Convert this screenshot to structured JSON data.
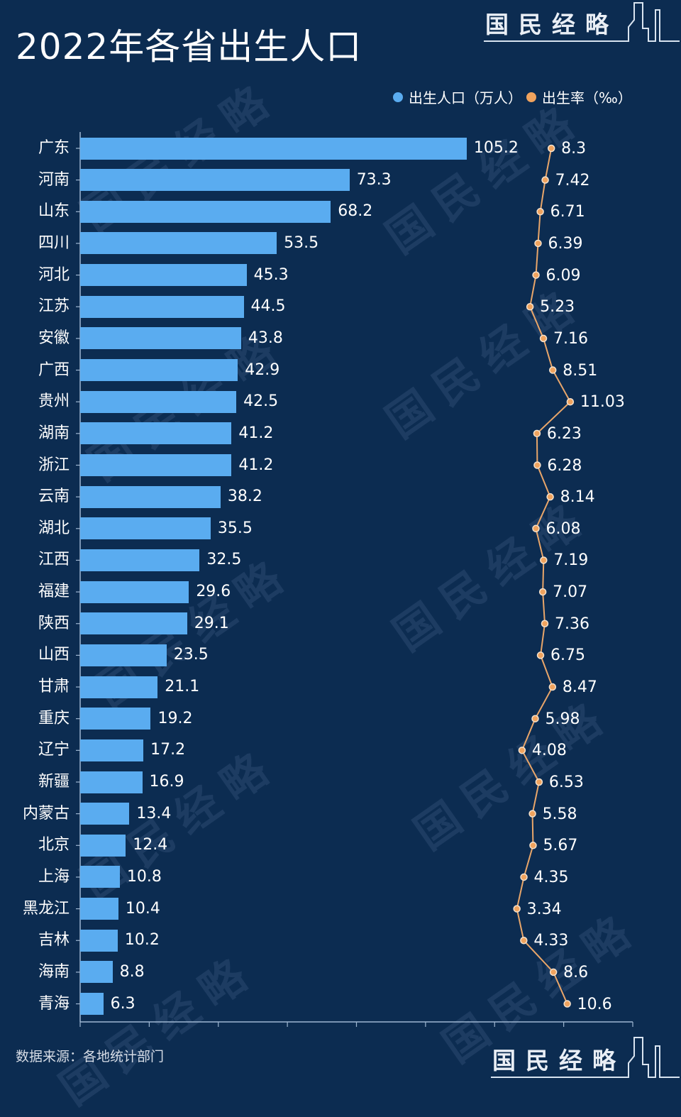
{
  "header": {
    "title": "2022年各省出生人口",
    "brand": "国民经略"
  },
  "legend": {
    "items": [
      {
        "label": "出生人口（万人）",
        "color": "#5aacf0"
      },
      {
        "label": "出生率（‰）",
        "color": "#f0a35e"
      }
    ]
  },
  "footer": {
    "source": "数据来源：各地统计部门",
    "brand": "国民经略"
  },
  "colors": {
    "background": "#0c2c51",
    "bar": "#5aacf0",
    "line": "#e9a66a",
    "axis": "#9fb7d2"
  },
  "watermark": "国民经略",
  "chart_data": {
    "type": "bar",
    "orientation": "horizontal",
    "title": "2022年各省出生人口",
    "xlabel": "",
    "ylabel": "",
    "grid": false,
    "legend_position": "top-right",
    "categories": [
      "广东",
      "河南",
      "山东",
      "四川",
      "河北",
      "江苏",
      "安徽",
      "广西",
      "贵州",
      "湖南",
      "浙江",
      "云南",
      "湖北",
      "江西",
      "福建",
      "陕西",
      "山西",
      "甘肃",
      "重庆",
      "辽宁",
      "新疆",
      "内蒙古",
      "北京",
      "上海",
      "黑龙江",
      "吉林",
      "海南",
      "青海"
    ],
    "series": [
      {
        "name": "出生人口（万人）",
        "type": "bar",
        "values": [
          105.2,
          73.3,
          68.2,
          53.5,
          45.3,
          44.5,
          43.8,
          42.9,
          42.5,
          41.2,
          41.2,
          38.2,
          35.5,
          32.5,
          29.6,
          29.1,
          23.5,
          21.1,
          19.2,
          17.2,
          16.9,
          13.4,
          12.4,
          10.8,
          10.4,
          10.2,
          8.8,
          6.3
        ]
      },
      {
        "name": "出生率（‰）",
        "type": "line",
        "values": [
          "8.3",
          "7.42",
          "6.71",
          "6.39",
          "6.09",
          "5.23",
          "7.16",
          "8.51",
          "11.03",
          "6.23",
          "6.28",
          "8.14",
          "6.08",
          "7.19",
          "7.07",
          "7.36",
          "6.75",
          "8.47",
          "5.98",
          "4.08",
          "6.53",
          "5.58",
          "5.67",
          "4.35",
          "3.34",
          "4.33",
          "8.6",
          "10.6"
        ]
      }
    ]
  }
}
